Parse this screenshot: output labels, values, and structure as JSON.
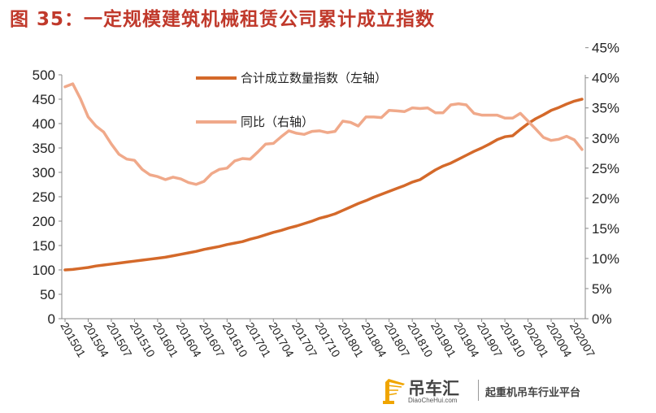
{
  "figure_title": "图 35：一定规模建筑机械租赁公司累计成立指数",
  "watermark": {
    "name": "吊车汇",
    "url": "DiaoCheHui.com",
    "slogan": "起重机吊车行业平台",
    "logo_icon": "crane-icon",
    "logo_color": "#f0a500"
  },
  "chart_data": {
    "type": "line",
    "title": "",
    "x": [
      "201501",
      "201502",
      "201503",
      "201504",
      "201505",
      "201506",
      "201507",
      "201508",
      "201509",
      "201510",
      "201511",
      "201512",
      "201601",
      "201602",
      "201603",
      "201604",
      "201605",
      "201606",
      "201607",
      "201608",
      "201609",
      "201610",
      "201611",
      "201612",
      "201701",
      "201702",
      "201703",
      "201704",
      "201705",
      "201706",
      "201707",
      "201708",
      "201709",
      "201710",
      "201711",
      "201712",
      "201801",
      "201802",
      "201803",
      "201804",
      "201805",
      "201806",
      "201807",
      "201808",
      "201809",
      "201810",
      "201811",
      "201812",
      "201901",
      "201902",
      "201903",
      "201904",
      "201905",
      "201906",
      "201907",
      "201908",
      "201909",
      "201910",
      "201911",
      "201912",
      "202001",
      "202002",
      "202003",
      "202004",
      "202005",
      "202006",
      "202007",
      "202008"
    ],
    "x_tick_labels": [
      "201501",
      "201504",
      "201507",
      "201510",
      "201601",
      "201604",
      "201607",
      "201610",
      "201701",
      "201704",
      "201707",
      "201710",
      "201801",
      "201804",
      "201807",
      "201810",
      "201901",
      "201904",
      "201907",
      "201910",
      "202001",
      "202004",
      "202007"
    ],
    "y_left": {
      "ticks": [
        "0",
        "50",
        "100",
        "150",
        "200",
        "250",
        "300",
        "350",
        "400",
        "450",
        "500"
      ],
      "ylim": [
        0,
        500
      ]
    },
    "y_right": {
      "ticks": [
        "0%",
        "5%",
        "10%",
        "15%",
        "20%",
        "25%",
        "30%",
        "35%",
        "40%",
        "45%"
      ],
      "ylim": [
        0,
        45
      ]
    },
    "series": [
      {
        "name": "合计成立数量指数（左轴）",
        "axis": "left",
        "color": "#d4692a",
        "values": [
          100,
          101,
          103,
          105,
          108,
          110,
          112,
          114,
          116,
          118,
          120,
          122,
          124,
          126,
          129,
          132,
          135,
          138,
          142,
          145,
          148,
          152,
          155,
          158,
          163,
          167,
          172,
          177,
          181,
          186,
          190,
          195,
          200,
          206,
          210,
          215,
          222,
          229,
          236,
          242,
          249,
          255,
          261,
          267,
          273,
          280,
          285,
          295,
          305,
          313,
          319,
          327,
          335,
          343,
          350,
          358,
          367,
          373,
          375,
          388,
          400,
          410,
          418,
          427,
          433,
          440,
          446,
          450
        ]
      },
      {
        "name": "同比（右轴）",
        "axis": "right",
        "color": "#f0a98a",
        "values": [
          38.5,
          39.0,
          36.5,
          33.5,
          32.0,
          31.0,
          29.0,
          27.3,
          26.5,
          26.3,
          24.8,
          23.9,
          23.6,
          23.1,
          23.5,
          23.2,
          22.6,
          22.3,
          22.8,
          24.1,
          24.8,
          25.0,
          26.2,
          26.6,
          26.5,
          27.7,
          29.0,
          29.1,
          30.2,
          31.2,
          30.8,
          30.6,
          31.1,
          31.2,
          30.9,
          31.1,
          32.8,
          32.6,
          32.0,
          33.5,
          33.5,
          33.4,
          34.6,
          34.5,
          34.4,
          35.0,
          34.9,
          35.0,
          34.2,
          34.2,
          35.5,
          35.7,
          35.5,
          34.1,
          33.8,
          33.8,
          33.8,
          33.3,
          33.3,
          34.1,
          32.8,
          31.5,
          30.1,
          29.6,
          29.8,
          30.3,
          29.7,
          28.1
        ]
      }
    ],
    "legend_position": "top-center",
    "grid": false
  }
}
